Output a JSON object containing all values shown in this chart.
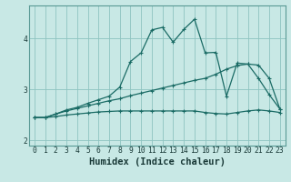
{
  "xlabel": "Humidex (Indice chaleur)",
  "bg_color": "#c8e8e5",
  "grid_color": "#8ec4c0",
  "line_color": "#1a6b65",
  "x_values": [
    0,
    1,
    2,
    3,
    4,
    5,
    6,
    7,
    8,
    9,
    10,
    11,
    12,
    13,
    14,
    15,
    16,
    17,
    18,
    19,
    20,
    21,
    22,
    23
  ],
  "line1": [
    2.45,
    2.45,
    2.52,
    2.6,
    2.65,
    2.73,
    2.8,
    2.87,
    3.05,
    3.55,
    3.72,
    4.17,
    4.22,
    3.93,
    4.18,
    4.38,
    3.72,
    3.73,
    2.87,
    3.52,
    3.5,
    3.22,
    2.9,
    2.62
  ],
  "line2": [
    2.45,
    2.45,
    2.52,
    2.58,
    2.63,
    2.68,
    2.73,
    2.78,
    2.82,
    2.88,
    2.93,
    2.98,
    3.03,
    3.08,
    3.13,
    3.18,
    3.22,
    3.3,
    3.4,
    3.47,
    3.5,
    3.48,
    3.22,
    2.62
  ],
  "line3": [
    2.45,
    2.45,
    2.47,
    2.5,
    2.52,
    2.54,
    2.56,
    2.57,
    2.58,
    2.58,
    2.58,
    2.58,
    2.58,
    2.58,
    2.58,
    2.58,
    2.55,
    2.53,
    2.52,
    2.55,
    2.58,
    2.6,
    2.58,
    2.55
  ],
  "ylim": [
    1.9,
    4.65
  ],
  "xlim": [
    -0.5,
    23.5
  ],
  "yticks": [
    2,
    3,
    4
  ],
  "xticks": [
    0,
    1,
    2,
    3,
    4,
    5,
    6,
    7,
    8,
    9,
    10,
    11,
    12,
    13,
    14,
    15,
    16,
    17,
    18,
    19,
    20,
    21,
    22,
    23
  ],
  "tick_fontsize": 5.8,
  "xlabel_fontsize": 7.5,
  "lw": 0.9,
  "ms": 3.0
}
